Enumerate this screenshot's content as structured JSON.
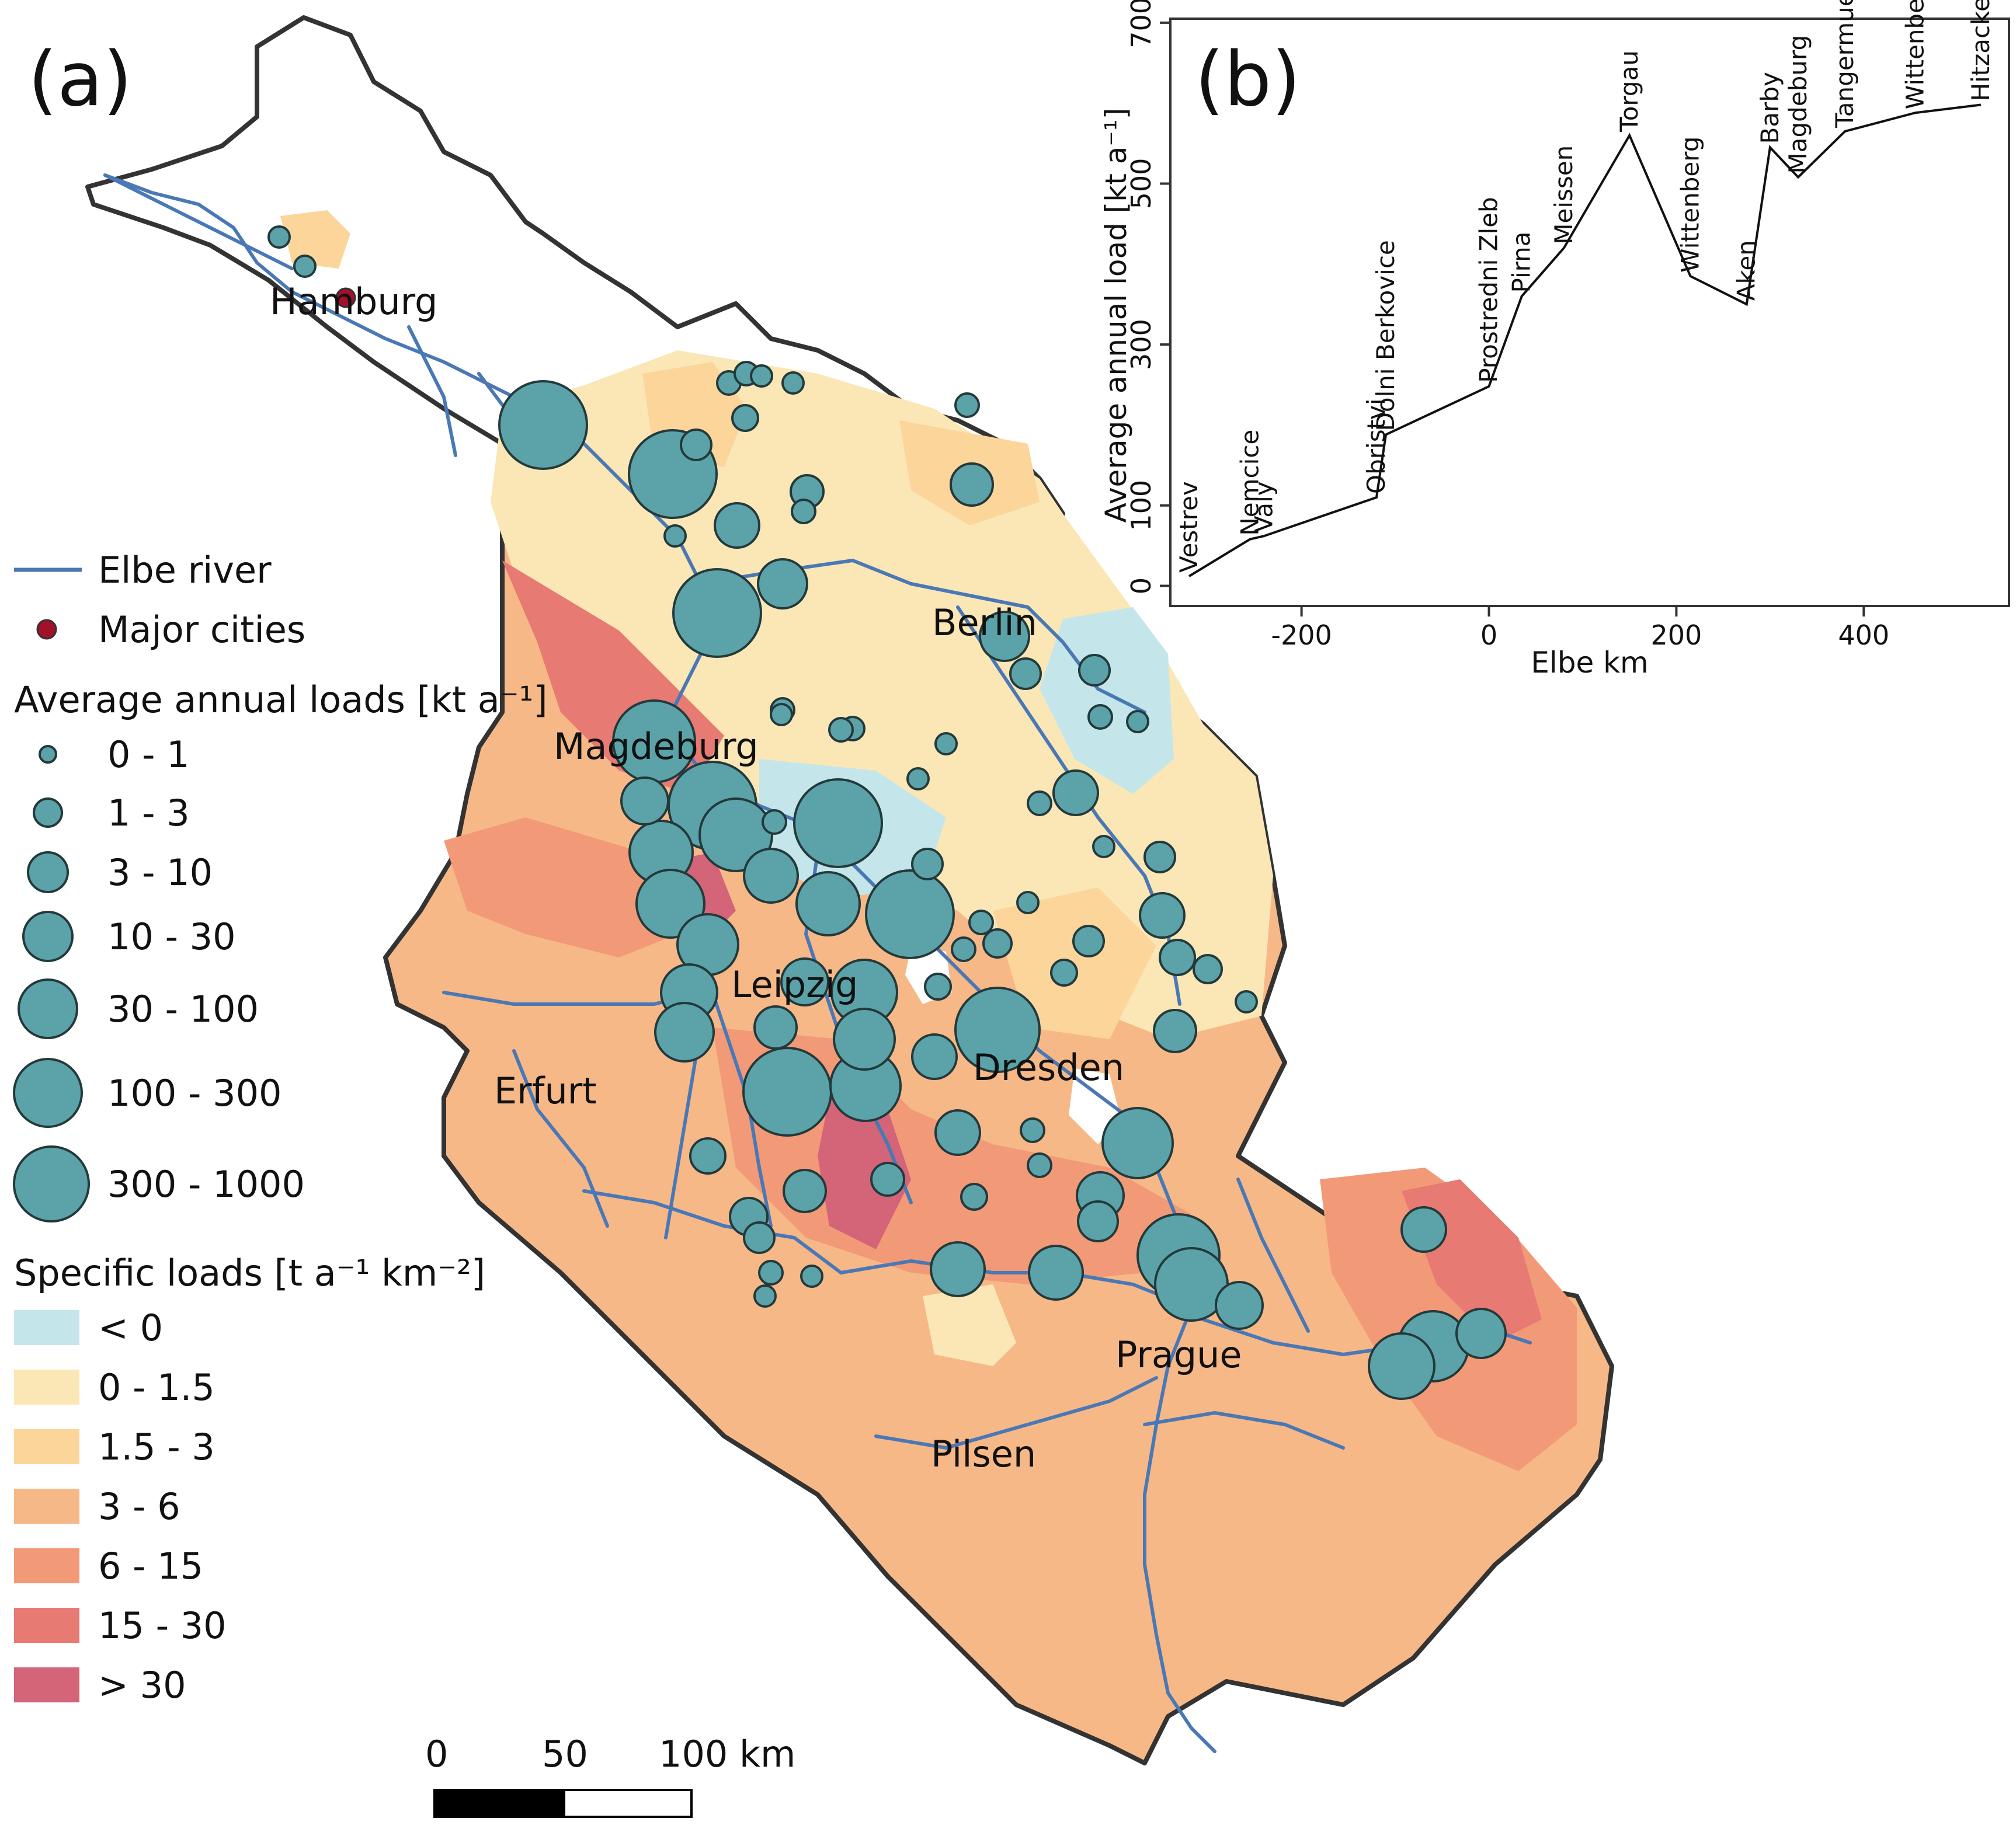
{
  "panel_a": {
    "label": "(a)",
    "cities": [
      "Hamburg",
      "Berlin",
      "Magdeburg",
      "Leipzig",
      "Erfurt",
      "Dresden",
      "Prague",
      "Pilsen"
    ],
    "legend": {
      "river": "Elbe river",
      "cities": "Major cities",
      "loads_title": "Average annual loads [kt a⁻¹]",
      "load_classes": [
        "0 - 1",
        "1 - 3",
        "3 - 10",
        "10 - 30",
        "30 - 100",
        "100 - 300",
        "300 - 1000"
      ],
      "specific_title": "Specific loads [t a⁻¹ km⁻²]",
      "specific_classes": [
        "< 0",
        "0 - 1.5",
        "1.5 - 3",
        "3 - 6",
        "6 - 15",
        "15 - 30",
        "> 30"
      ]
    },
    "scalebar": {
      "ticks": [
        "0",
        "50",
        "100 km"
      ]
    }
  },
  "colors": {
    "circle_fill": "#5ba3a8",
    "circle_stroke": "#24393b",
    "river": "#4a78b5",
    "city_dot": "#a3102a",
    "specific": [
      "#c4e6ea",
      "#fbe7b6",
      "#fcd59b",
      "#f7b887",
      "#f29a78",
      "#e77a73",
      "#d46478"
    ]
  },
  "chart_data": {
    "type": "line",
    "label": "(b)",
    "xlabel": "Elbe km",
    "ylabel": "Average annual load [kt a⁻¹]",
    "xlim": [
      -340,
      555
    ],
    "ylim": [
      -25,
      705
    ],
    "x_ticks": [
      "-200",
      "0",
      "200",
      "400"
    ],
    "y_ticks": [
      "0",
      "100",
      "300",
      "500",
      "700"
    ],
    "x": [
      -320,
      -255,
      -240,
      -120,
      -110,
      0,
      35,
      80,
      150,
      215,
      275,
      300,
      330,
      380,
      455,
      525
    ],
    "y": [
      12,
      58,
      62,
      110,
      188,
      248,
      360,
      420,
      560,
      385,
      350,
      545,
      508,
      565,
      588,
      598
    ],
    "stations": [
      "Vestrev",
      "Nemcice",
      "Valy",
      "Obristvi",
      "Dolni Berkovice",
      "Prostredni Zleb",
      "Pirna",
      "Meissen",
      "Torgau",
      "Wittenberg",
      "Aken",
      "Barby",
      "Magdeburg",
      "Tangermuende",
      "Wittenberge",
      "Hitzacker"
    ]
  }
}
